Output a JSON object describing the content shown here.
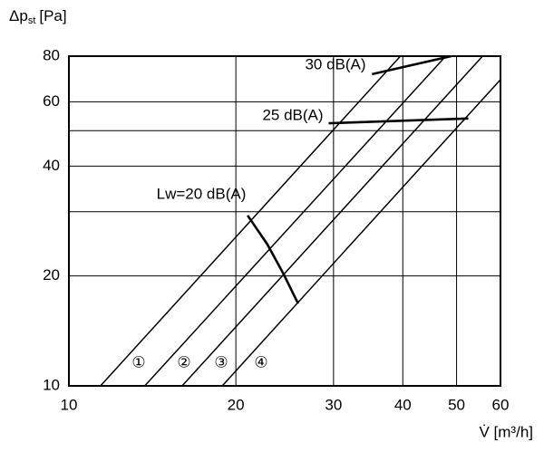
{
  "chart_data": {
    "type": "line",
    "ylabel": {
      "symbol": "Δp",
      "subscript": "st",
      "unit": "[Pa]"
    },
    "xlabel": "V̇ [m³/h]",
    "xscale": "log",
    "yscale": "log",
    "grid": true,
    "color": "#000000",
    "xlim": [
      10,
      60
    ],
    "ylim": [
      10,
      80
    ],
    "xticks": [
      10,
      20,
      30,
      40,
      50,
      60
    ],
    "yticks": [
      10,
      20,
      40,
      60,
      80
    ],
    "ygrid_extra": [
      30,
      50
    ],
    "series": [
      {
        "name": "①",
        "color": "#000000",
        "x": [
          11.4,
          39.6
        ],
        "values": [
          10,
          80
        ]
      },
      {
        "name": "②",
        "color": "#000000",
        "x": [
          13.7,
          47.8
        ],
        "values": [
          10,
          80
        ]
      },
      {
        "name": "③",
        "color": "#000000",
        "x": [
          16.0,
          55.7
        ],
        "values": [
          10,
          80
        ]
      },
      {
        "name": "④",
        "color": "#000000",
        "x": [
          18.9,
          60
        ],
        "values": [
          10,
          69
        ]
      },
      {
        "name": "Lw=20 dB(A)",
        "color": "#000000",
        "x": [
          21.0,
          22.8,
          24.4,
          25.9
        ],
        "values": [
          29.3,
          24.4,
          20.2,
          16.8
        ]
      },
      {
        "name": "25 dB(A)",
        "color": "#000000",
        "x": [
          29.4,
          52.5
        ],
        "values": [
          52.4,
          54.0
        ]
      },
      {
        "name": "30 dB(A)",
        "color": "#000000",
        "x": [
          35.2,
          48.9
        ],
        "values": [
          71.4,
          80
        ]
      }
    ]
  }
}
